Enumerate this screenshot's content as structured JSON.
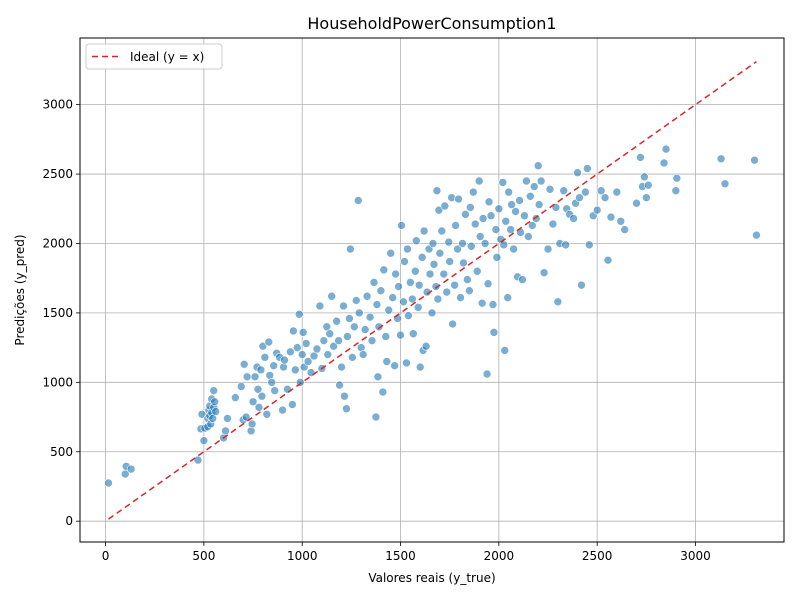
{
  "chart_data": {
    "type": "scatter",
    "title": "HouseholdPowerConsumption1",
    "xlabel": "Valores reais (y_true)",
    "ylabel": "Predições (y_pred)",
    "xlim": [
      -130,
      3450
    ],
    "ylim": [
      -150,
      3480
    ],
    "xticks": [
      0,
      500,
      1000,
      1500,
      2000,
      2500,
      3000
    ],
    "yticks": [
      0,
      500,
      1000,
      1500,
      2000,
      2500,
      3000
    ],
    "grid": true,
    "legend_position": "top-left",
    "point_color": "#1f77b4",
    "line_color": "#d62728",
    "ideal_line": {
      "label": "Ideal (y = x)",
      "from": [
        15,
        15
      ],
      "to": [
        3310,
        3310
      ]
    },
    "points": [
      [
        15,
        275
      ],
      [
        100,
        340
      ],
      [
        105,
        395
      ],
      [
        130,
        375
      ],
      [
        470,
        440
      ],
      [
        485,
        665
      ],
      [
        490,
        770
      ],
      [
        500,
        580
      ],
      [
        505,
        670
      ],
      [
        520,
        680
      ],
      [
        520,
        740
      ],
      [
        525,
        800
      ],
      [
        530,
        760
      ],
      [
        530,
        830
      ],
      [
        535,
        700
      ],
      [
        540,
        780
      ],
      [
        540,
        880
      ],
      [
        545,
        740
      ],
      [
        550,
        820
      ],
      [
        550,
        940
      ],
      [
        555,
        860
      ],
      [
        560,
        790
      ],
      [
        600,
        600
      ],
      [
        610,
        650
      ],
      [
        620,
        740
      ],
      [
        660,
        890
      ],
      [
        690,
        970
      ],
      [
        700,
        730
      ],
      [
        705,
        1130
      ],
      [
        715,
        750
      ],
      [
        720,
        1040
      ],
      [
        740,
        650
      ],
      [
        745,
        700
      ],
      [
        750,
        860
      ],
      [
        760,
        1040
      ],
      [
        770,
        1110
      ],
      [
        775,
        950
      ],
      [
        780,
        820
      ],
      [
        790,
        1090
      ],
      [
        795,
        900
      ],
      [
        800,
        1260
      ],
      [
        810,
        1180
      ],
      [
        820,
        770
      ],
      [
        830,
        1290
      ],
      [
        835,
        1050
      ],
      [
        845,
        1000
      ],
      [
        855,
        1120
      ],
      [
        860,
        940
      ],
      [
        870,
        1210
      ],
      [
        885,
        1180
      ],
      [
        900,
        800
      ],
      [
        905,
        1110
      ],
      [
        910,
        1160
      ],
      [
        925,
        950
      ],
      [
        940,
        1220
      ],
      [
        950,
        840
      ],
      [
        955,
        1370
      ],
      [
        965,
        1090
      ],
      [
        975,
        1250
      ],
      [
        985,
        1490
      ],
      [
        990,
        1000
      ],
      [
        1000,
        1200
      ],
      [
        1005,
        1360
      ],
      [
        1010,
        1110
      ],
      [
        1020,
        1280
      ],
      [
        1030,
        1150
      ],
      [
        1045,
        1070
      ],
      [
        1060,
        1190
      ],
      [
        1075,
        1240
      ],
      [
        1090,
        1550
      ],
      [
        1100,
        1100
      ],
      [
        1110,
        1300
      ],
      [
        1125,
        1400
      ],
      [
        1130,
        1200
      ],
      [
        1140,
        1350
      ],
      [
        1150,
        1620
      ],
      [
        1160,
        1260
      ],
      [
        1175,
        1440
      ],
      [
        1185,
        1300
      ],
      [
        1190,
        980
      ],
      [
        1200,
        1110
      ],
      [
        1210,
        1550
      ],
      [
        1215,
        900
      ],
      [
        1225,
        810
      ],
      [
        1230,
        1330
      ],
      [
        1240,
        1460
      ],
      [
        1245,
        1960
      ],
      [
        1255,
        1180
      ],
      [
        1265,
        1400
      ],
      [
        1275,
        1590
      ],
      [
        1285,
        2310
      ],
      [
        1290,
        1500
      ],
      [
        1300,
        1250
      ],
      [
        1310,
        1200
      ],
      [
        1320,
        1380
      ],
      [
        1330,
        1620
      ],
      [
        1345,
        1470
      ],
      [
        1355,
        1300
      ],
      [
        1365,
        1720
      ],
      [
        1375,
        750
      ],
      [
        1380,
        1560
      ],
      [
        1385,
        1040
      ],
      [
        1390,
        1400
      ],
      [
        1400,
        1660
      ],
      [
        1410,
        930
      ],
      [
        1415,
        1810
      ],
      [
        1425,
        1330
      ],
      [
        1430,
        1150
      ],
      [
        1440,
        1520
      ],
      [
        1450,
        1930
      ],
      [
        1460,
        1610
      ],
      [
        1470,
        1120
      ],
      [
        1475,
        1780
      ],
      [
        1485,
        1460
      ],
      [
        1490,
        1690
      ],
      [
        1500,
        1340
      ],
      [
        1505,
        2130
      ],
      [
        1515,
        1580
      ],
      [
        1520,
        1870
      ],
      [
        1530,
        1140
      ],
      [
        1535,
        1960
      ],
      [
        1540,
        1480
      ],
      [
        1550,
        1720
      ],
      [
        1560,
        1600
      ],
      [
        1565,
        1350
      ],
      [
        1575,
        1800
      ],
      [
        1580,
        2020
      ],
      [
        1590,
        1540
      ],
      [
        1595,
        1700
      ],
      [
        1600,
        1110
      ],
      [
        1610,
        1900
      ],
      [
        1615,
        1230
      ],
      [
        1620,
        2090
      ],
      [
        1630,
        1260
      ],
      [
        1635,
        1650
      ],
      [
        1645,
        1960
      ],
      [
        1650,
        1780
      ],
      [
        1660,
        1500
      ],
      [
        1665,
        2000
      ],
      [
        1670,
        1850
      ],
      [
        1680,
        1690
      ],
      [
        1685,
        2380
      ],
      [
        1690,
        1600
      ],
      [
        1695,
        2240
      ],
      [
        1700,
        1930
      ],
      [
        1710,
        2090
      ],
      [
        1720,
        1780
      ],
      [
        1725,
        2270
      ],
      [
        1735,
        1650
      ],
      [
        1745,
        2010
      ],
      [
        1750,
        1870
      ],
      [
        1760,
        2330
      ],
      [
        1765,
        1420
      ],
      [
        1775,
        1700
      ],
      [
        1780,
        2130
      ],
      [
        1790,
        1960
      ],
      [
        1795,
        2320
      ],
      [
        1805,
        1610
      ],
      [
        1815,
        2000
      ],
      [
        1820,
        1860
      ],
      [
        1830,
        2210
      ],
      [
        1840,
        1740
      ],
      [
        1850,
        1660
      ],
      [
        1855,
        2260
      ],
      [
        1860,
        1980
      ],
      [
        1870,
        2370
      ],
      [
        1880,
        2140
      ],
      [
        1890,
        1800
      ],
      [
        1900,
        2450
      ],
      [
        1905,
        2050
      ],
      [
        1915,
        1570
      ],
      [
        1920,
        2180
      ],
      [
        1930,
        2000
      ],
      [
        1940,
        1060
      ],
      [
        1945,
        1710
      ],
      [
        1950,
        2300
      ],
      [
        1960,
        2200
      ],
      [
        1970,
        1560
      ],
      [
        1975,
        1360
      ],
      [
        1985,
        2100
      ],
      [
        1990,
        1900
      ],
      [
        2000,
        2250
      ],
      [
        2010,
        2030
      ],
      [
        2020,
        2440
      ],
      [
        2025,
        1990
      ],
      [
        2030,
        1230
      ],
      [
        2035,
        2160
      ],
      [
        2045,
        1610
      ],
      [
        2050,
        2370
      ],
      [
        2060,
        2100
      ],
      [
        2065,
        2280
      ],
      [
        2075,
        1960
      ],
      [
        2085,
        2230
      ],
      [
        2095,
        1760
      ],
      [
        2105,
        2310
      ],
      [
        2110,
        2080
      ],
      [
        2120,
        1740
      ],
      [
        2130,
        2200
      ],
      [
        2140,
        2450
      ],
      [
        2150,
        2050
      ],
      [
        2160,
        2340
      ],
      [
        2170,
        2130
      ],
      [
        2180,
        2410
      ],
      [
        2190,
        2180
      ],
      [
        2200,
        2560
      ],
      [
        2205,
        2280
      ],
      [
        2215,
        2450
      ],
      [
        2230,
        1790
      ],
      [
        2250,
        1960
      ],
      [
        2260,
        2390
      ],
      [
        2275,
        2140
      ],
      [
        2290,
        2260
      ],
      [
        2300,
        1580
      ],
      [
        2310,
        2000
      ],
      [
        2330,
        2380
      ],
      [
        2340,
        1990
      ],
      [
        2345,
        2250
      ],
      [
        2360,
        2210
      ],
      [
        2380,
        2180
      ],
      [
        2390,
        2290
      ],
      [
        2400,
        2510
      ],
      [
        2410,
        2330
      ],
      [
        2420,
        1700
      ],
      [
        2440,
        2370
      ],
      [
        2450,
        2540
      ],
      [
        2460,
        1990
      ],
      [
        2480,
        2200
      ],
      [
        2500,
        2240
      ],
      [
        2520,
        2380
      ],
      [
        2540,
        2330
      ],
      [
        2555,
        1880
      ],
      [
        2570,
        2190
      ],
      [
        2600,
        2370
      ],
      [
        2620,
        2160
      ],
      [
        2640,
        2100
      ],
      [
        2700,
        2290
      ],
      [
        2720,
        2620
      ],
      [
        2730,
        2410
      ],
      [
        2740,
        2480
      ],
      [
        2750,
        2330
      ],
      [
        2760,
        2420
      ],
      [
        2840,
        2580
      ],
      [
        2850,
        2680
      ],
      [
        2900,
        2380
      ],
      [
        2905,
        2470
      ],
      [
        3130,
        2610
      ],
      [
        3150,
        2430
      ],
      [
        3300,
        2600
      ],
      [
        3310,
        2060
      ]
    ]
  }
}
